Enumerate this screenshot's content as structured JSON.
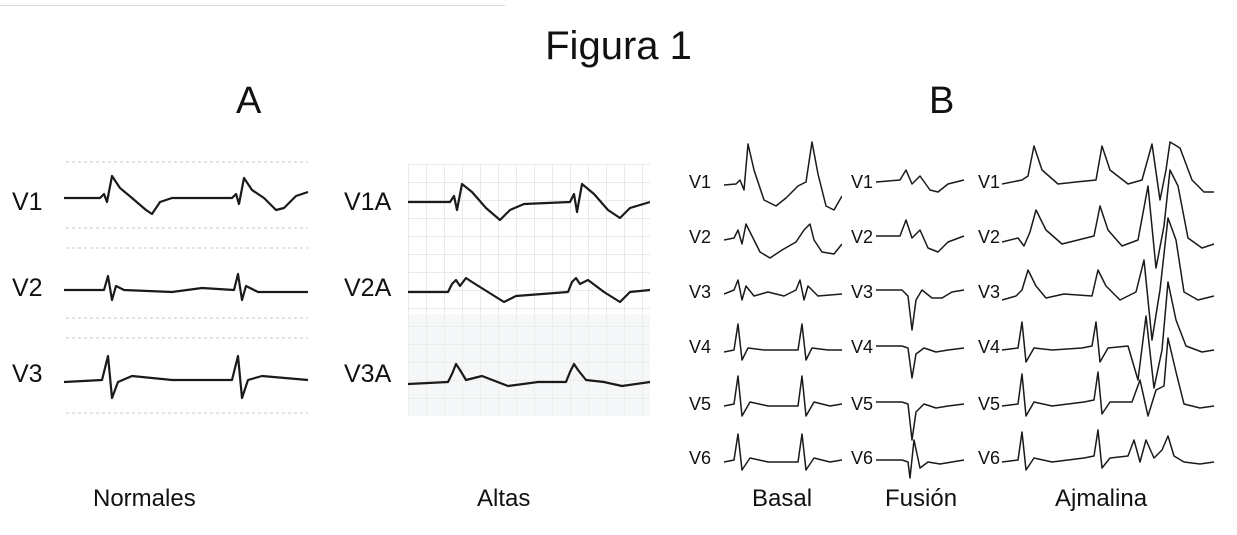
{
  "figure": {
    "title": "Figura 1"
  },
  "panelA": {
    "label": "A",
    "normales": {
      "caption": "Normales",
      "leads": [
        "V1",
        "V2",
        "V3"
      ]
    },
    "altas": {
      "caption": "Altas",
      "leads": [
        "V1A",
        "V2A",
        "V3A"
      ]
    }
  },
  "panelB": {
    "label": "B",
    "basal": {
      "caption": "Basal",
      "leads": [
        "V1",
        "V2",
        "V3",
        "V4",
        "V5",
        "V6"
      ]
    },
    "fusion": {
      "caption": "Fusión",
      "leads": [
        "V1",
        "V2",
        "V3",
        "V4",
        "V5",
        "V6"
      ]
    },
    "ajmalina": {
      "caption": "Ajmalina",
      "leads": [
        "V1",
        "V2",
        "V3",
        "V4",
        "V5",
        "V6"
      ]
    }
  }
}
